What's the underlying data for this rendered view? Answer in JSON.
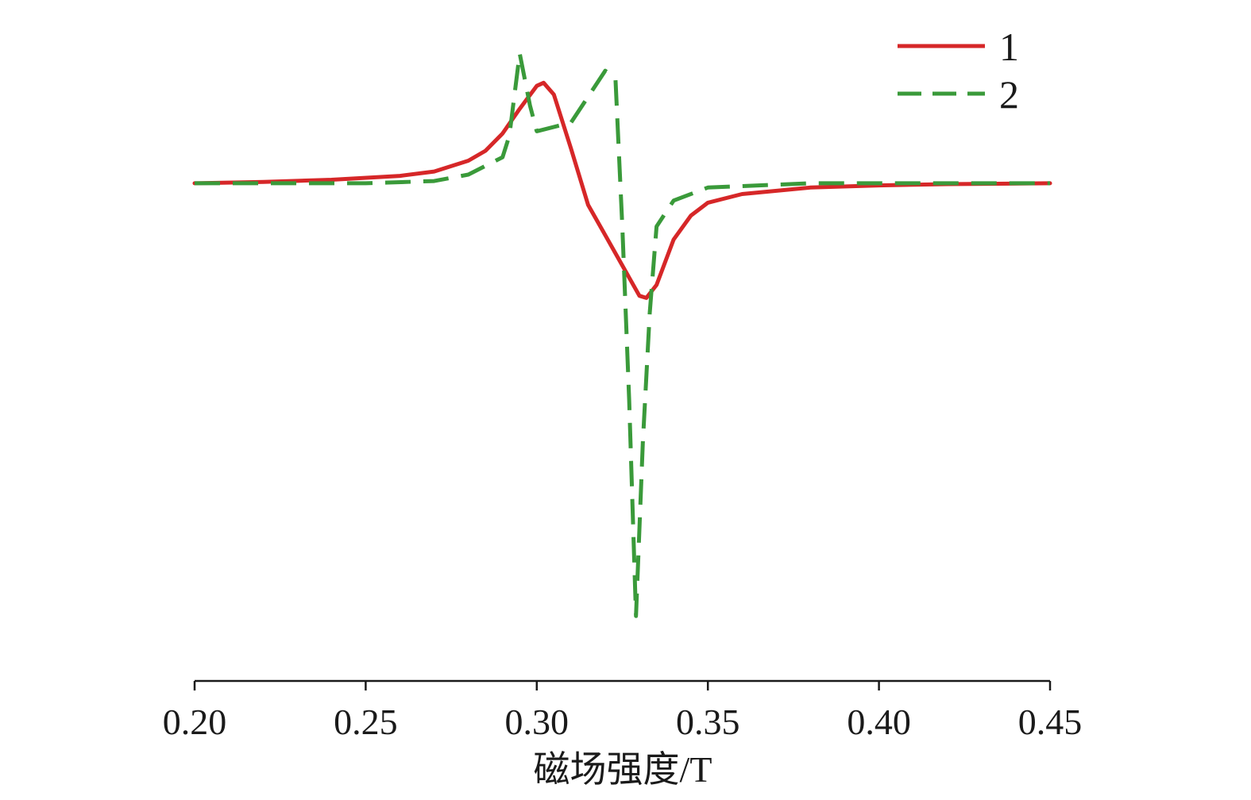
{
  "chart_data": {
    "type": "line",
    "xlabel": "磁场强度/T",
    "ylabel": "",
    "xlim": [
      0.2,
      0.45
    ],
    "ylim": [
      -1.15,
      0.35
    ],
    "xticks": [
      0.2,
      0.25,
      0.3,
      0.35,
      0.4,
      0.45
    ],
    "xtick_labels": [
      "0.20",
      "0.25",
      "0.30",
      "0.35",
      "0.40",
      "0.45"
    ],
    "grid": false,
    "legend_position": "top-right",
    "series": [
      {
        "name": "1",
        "color": "#d62728",
        "style": "solid",
        "x": [
          0.2,
          0.22,
          0.24,
          0.26,
          0.27,
          0.28,
          0.285,
          0.29,
          0.295,
          0.3,
          0.302,
          0.305,
          0.31,
          0.315,
          0.32,
          0.325,
          0.33,
          0.332,
          0.335,
          0.34,
          0.345,
          0.35,
          0.36,
          0.38,
          0.4,
          0.42,
          0.45
        ],
        "y": [
          0.0,
          0.003,
          0.008,
          0.017,
          0.027,
          0.052,
          0.075,
          0.115,
          0.172,
          0.225,
          0.232,
          0.205,
          0.08,
          -0.05,
          -0.12,
          -0.19,
          -0.26,
          -0.265,
          -0.235,
          -0.13,
          -0.075,
          -0.045,
          -0.025,
          -0.01,
          -0.005,
          -0.002,
          0.0
        ]
      },
      {
        "name": "2",
        "color": "#3a9a3a",
        "style": "dashed",
        "x": [
          0.2,
          0.25,
          0.27,
          0.28,
          0.29,
          0.292,
          0.295,
          0.298,
          0.3,
          0.31,
          0.32,
          0.323,
          0.325,
          0.327,
          0.329,
          0.331,
          0.333,
          0.335,
          0.34,
          0.35,
          0.38,
          0.45
        ],
        "y": [
          0.0,
          0.0,
          0.005,
          0.02,
          0.06,
          0.11,
          0.3,
          0.18,
          0.12,
          0.14,
          0.26,
          0.24,
          -0.1,
          -0.5,
          -1.0,
          -0.6,
          -0.3,
          -0.1,
          -0.04,
          -0.01,
          0.0,
          0.0
        ]
      }
    ]
  }
}
